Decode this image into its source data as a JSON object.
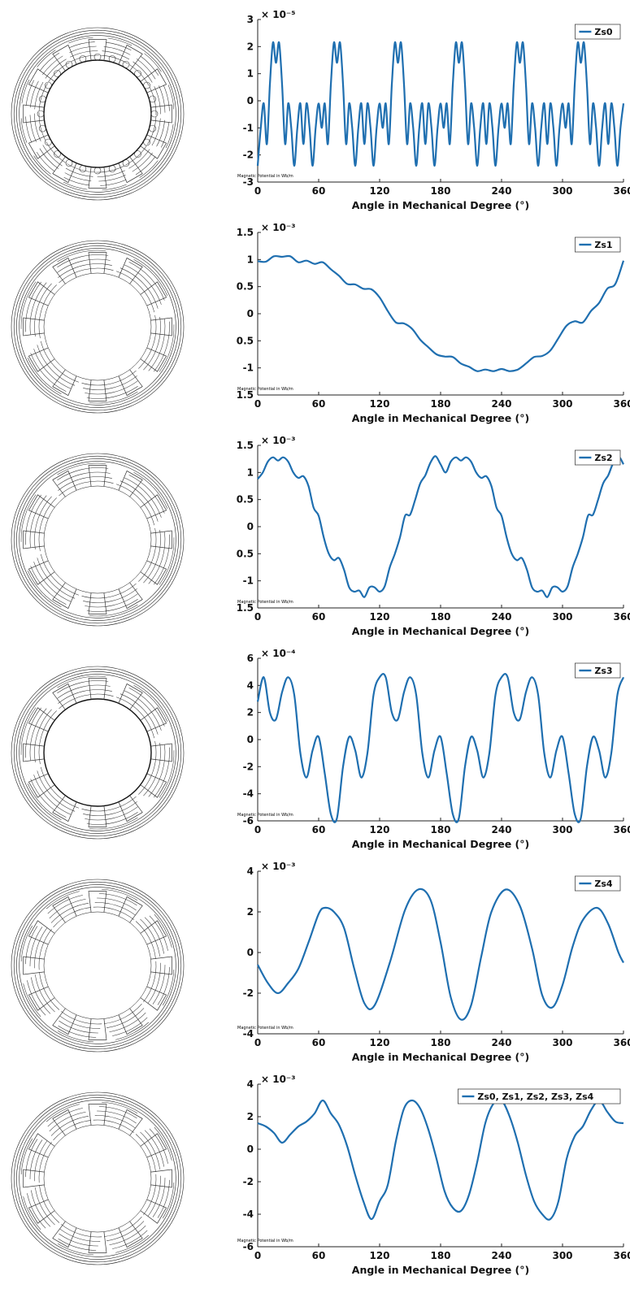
{
  "contour_caption": "Magnetic Potential in Wb/m",
  "chart_data": [
    {
      "type": "line",
      "xlabel": "Angle in Mechanical Degree (°)",
      "xlim": [
        0,
        360
      ],
      "xticks": [
        0,
        60,
        120,
        180,
        240,
        300,
        360
      ],
      "ylim": [
        -3,
        3
      ],
      "yticks": [
        -3,
        -2,
        -1,
        0,
        1,
        2,
        3
      ],
      "exponent": "× 10⁻⁵",
      "legend": "top-right",
      "color": "#1f6fb0",
      "series": [
        {
          "name": "Zs0",
          "x": [
            0,
            3,
            6,
            9,
            12,
            15,
            18,
            21,
            24,
            27,
            30,
            33,
            36,
            39,
            42,
            45,
            48,
            51,
            54,
            57,
            60
          ],
          "y": [
            -2.4,
            -1.0,
            -0.1,
            -1.6,
            0.6,
            2.15,
            1.4,
            2.15,
            0.6,
            -1.6,
            -0.1,
            -1.0,
            -2.4,
            -1.0,
            -0.1,
            -1.6,
            -0.1,
            -1.0,
            -2.4,
            -1.0,
            -0.1
          ],
          "periodic": 60
        }
      ]
    },
    {
      "type": "line",
      "xlabel": "Angle in Mechanical Degree (°)",
      "xlim": [
        0,
        360
      ],
      "xticks": [
        0,
        60,
        120,
        180,
        240,
        300,
        360
      ],
      "ylim": [
        -1.5,
        1.5
      ],
      "yticks": [
        -1.5,
        -1,
        -0.5,
        0,
        0.5,
        1,
        1.5
      ],
      "exponent": "× 10⁻³",
      "legend": "top-right",
      "color": "#1f6fb0",
      "series": [
        {
          "name": "Zs1",
          "x": [
            0,
            8,
            16,
            24,
            32,
            40,
            48,
            56,
            64,
            72,
            80,
            88,
            96,
            104,
            112,
            120,
            128,
            136,
            144,
            152,
            160,
            168,
            176,
            184,
            192,
            200,
            208,
            216,
            224,
            232,
            240,
            248,
            256,
            264,
            272,
            280,
            288,
            296,
            304,
            312,
            320,
            328,
            336,
            344,
            352,
            360
          ],
          "y": [
            0.97,
            0.96,
            1.06,
            1.05,
            1.06,
            0.95,
            0.98,
            0.92,
            0.95,
            0.82,
            0.7,
            0.55,
            0.54,
            0.46,
            0.45,
            0.3,
            0.05,
            -0.16,
            -0.18,
            -0.28,
            -0.48,
            -0.62,
            -0.75,
            -0.79,
            -0.8,
            -0.92,
            -0.98,
            -1.06,
            -1.03,
            -1.06,
            -1.02,
            -1.06,
            -1.03,
            -0.92,
            -0.8,
            -0.78,
            -0.68,
            -0.45,
            -0.22,
            -0.14,
            -0.16,
            0.05,
            0.2,
            0.46,
            0.55,
            0.98
          ]
        }
      ]
    },
    {
      "type": "line",
      "xlabel": "Angle in Mechanical Degree (°)",
      "xlim": [
        0,
        360
      ],
      "xticks": [
        0,
        60,
        120,
        180,
        240,
        300,
        360
      ],
      "ylim": [
        -1.5,
        1.5
      ],
      "yticks": [
        -1.5,
        -1,
        -0.5,
        0,
        0.5,
        1,
        1.5
      ],
      "exponent": "× 10⁻³",
      "legend": "top-right",
      "color": "#1f6fb0",
      "series": [
        {
          "name": "Zs2",
          "x": [
            0,
            5,
            10,
            15,
            20,
            25,
            30,
            35,
            40,
            45,
            50,
            55,
            60,
            65,
            70,
            75,
            80,
            85,
            90,
            95,
            100,
            105,
            110,
            115,
            120,
            125,
            130,
            135,
            140,
            145,
            150,
            155,
            160,
            165,
            170,
            175,
            180
          ],
          "y": [
            0.88,
            1.0,
            1.2,
            1.28,
            1.22,
            1.28,
            1.2,
            1.0,
            0.9,
            0.93,
            0.75,
            0.35,
            0.2,
            -0.2,
            -0.5,
            -0.62,
            -0.58,
            -0.8,
            -1.12,
            -1.2,
            -1.18,
            -1.3,
            -1.12,
            -1.12,
            -1.2,
            -1.1,
            -0.75,
            -0.5,
            -0.2,
            0.2,
            0.22,
            0.5,
            0.8,
            0.95,
            1.18,
            1.3,
            1.15
          ],
          "periodic": 180
        }
      ]
    },
    {
      "type": "line",
      "xlabel": "Angle in Mechanical Degree (°)",
      "xlim": [
        0,
        360
      ],
      "xticks": [
        0,
        60,
        120,
        180,
        240,
        300,
        360
      ],
      "ylim": [
        -6,
        6
      ],
      "yticks": [
        -6,
        -4,
        -2,
        0,
        2,
        4,
        6
      ],
      "exponent": "× 10⁻⁴",
      "legend": "top-right",
      "color": "#1f6fb0",
      "series": [
        {
          "name": "Zs3",
          "x": [
            0,
            6,
            12,
            18,
            24,
            30,
            36,
            42,
            48,
            54,
            60,
            66,
            72,
            78,
            84,
            90,
            96,
            102,
            108,
            114,
            120
          ],
          "y": [
            2.8,
            4.6,
            2.0,
            1.5,
            3.5,
            4.6,
            3.3,
            -1.0,
            -2.8,
            -0.8,
            0.2,
            -2.5,
            -5.5,
            -5.8,
            -2.0,
            0.2,
            -0.8,
            -2.8,
            -1.0,
            3.3,
            4.6
          ],
          "periodic": 120
        }
      ]
    },
    {
      "type": "line",
      "xlabel": "Angle in Mechanical Degree (°)",
      "xlim": [
        0,
        360
      ],
      "xticks": [
        0,
        60,
        120,
        180,
        240,
        300,
        360
      ],
      "ylim": [
        -4,
        4
      ],
      "yticks": [
        -4,
        -2,
        0,
        2,
        4
      ],
      "exponent": "× 10⁻³",
      "legend": "top-right",
      "color": "#1f6fb0",
      "series": [
        {
          "name": "Zs4",
          "x": [
            0,
            10,
            20,
            30,
            40,
            50,
            60,
            66,
            75,
            85,
            95,
            105,
            115,
            130,
            145,
            158,
            170,
            180,
            190,
            200,
            210,
            220,
            230,
            244,
            258,
            270,
            280,
            290,
            300,
            310,
            320,
            334,
            345,
            355,
            360
          ],
          "y": [
            -0.6,
            -1.5,
            -2.0,
            -1.5,
            -0.8,
            0.5,
            1.9,
            2.2,
            2.0,
            1.2,
            -0.8,
            -2.5,
            -2.6,
            -0.5,
            2.1,
            3.1,
            2.6,
            0.5,
            -2.2,
            -3.3,
            -2.6,
            -0.2,
            2.0,
            3.1,
            2.3,
            0.2,
            -2.1,
            -2.7,
            -1.6,
            0.3,
            1.6,
            2.2,
            1.4,
            0.0,
            -0.5
          ]
        }
      ]
    },
    {
      "type": "line",
      "xlabel": "Angle in Mechanical Degree (°)",
      "xlim": [
        0,
        360
      ],
      "xticks": [
        0,
        60,
        120,
        180,
        240,
        300,
        360
      ],
      "ylim": [
        -6,
        4
      ],
      "yticks": [
        -6,
        -4,
        -2,
        0,
        2,
        4
      ],
      "exponent": "× 10⁻³",
      "legend": "top-right",
      "color": "#1f6fb0",
      "series": [
        {
          "name": "Zs0, Zs1, Zs2, Zs3, Zs4",
          "x": [
            0,
            8,
            16,
            24,
            32,
            40,
            48,
            56,
            64,
            72,
            80,
            88,
            96,
            104,
            112,
            120,
            128,
            136,
            144,
            152,
            160,
            168,
            176,
            184,
            192,
            200,
            208,
            216,
            224,
            232,
            240,
            248,
            256,
            264,
            272,
            280,
            288,
            296,
            304,
            312,
            320,
            328,
            336,
            344,
            352,
            360
          ],
          "y": [
            1.6,
            1.4,
            1.0,
            0.4,
            0.9,
            1.4,
            1.7,
            2.2,
            3.0,
            2.2,
            1.5,
            0.2,
            -1.6,
            -3.2,
            -4.3,
            -3.2,
            -2.2,
            0.5,
            2.5,
            3.0,
            2.5,
            1.2,
            -0.6,
            -2.6,
            -3.6,
            -3.8,
            -2.8,
            -0.8,
            1.6,
            2.8,
            3.0,
            2.0,
            0.4,
            -1.6,
            -3.2,
            -4.0,
            -4.3,
            -3.2,
            -0.6,
            0.8,
            1.4,
            2.4,
            3.0,
            2.3,
            1.7,
            1.6
          ]
        }
      ]
    }
  ]
}
